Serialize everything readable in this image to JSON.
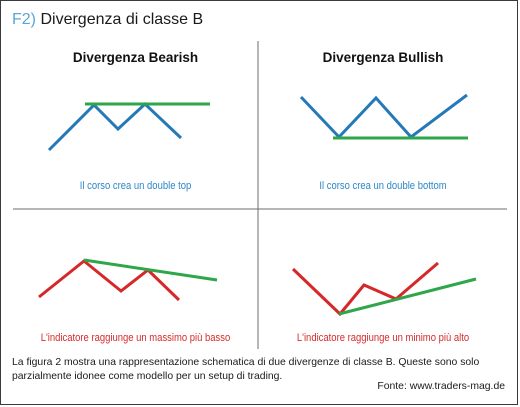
{
  "figure": {
    "number": "F2)",
    "title": "Divergenza di classe B"
  },
  "panels": {
    "top_left": {
      "title": "Divergenza Bearish",
      "caption": "Il corso crea un double top"
    },
    "top_right": {
      "title": "Divergenza Bullish",
      "caption": "Il corso crea un double bottom"
    },
    "bottom_left": {
      "caption": "L'indicatore raggiunge un massimo più basso"
    },
    "bottom_right": {
      "caption": "L'indicatore raggiunge un minimo più alto"
    }
  },
  "description": "La figura 2 mostra una rappresentazione schematica di due divergenze di classe B. Queste sono solo parzialmente idonee come modello per un setup di trading.",
  "source": "Fonte: www.traders-mag.de",
  "colors": {
    "price_line": "#2479b8",
    "price_trendline": "#2ea64a",
    "indicator_line": "#d62828",
    "indicator_trendline": "#2ea64a",
    "divider": "#6e6e6e"
  }
}
